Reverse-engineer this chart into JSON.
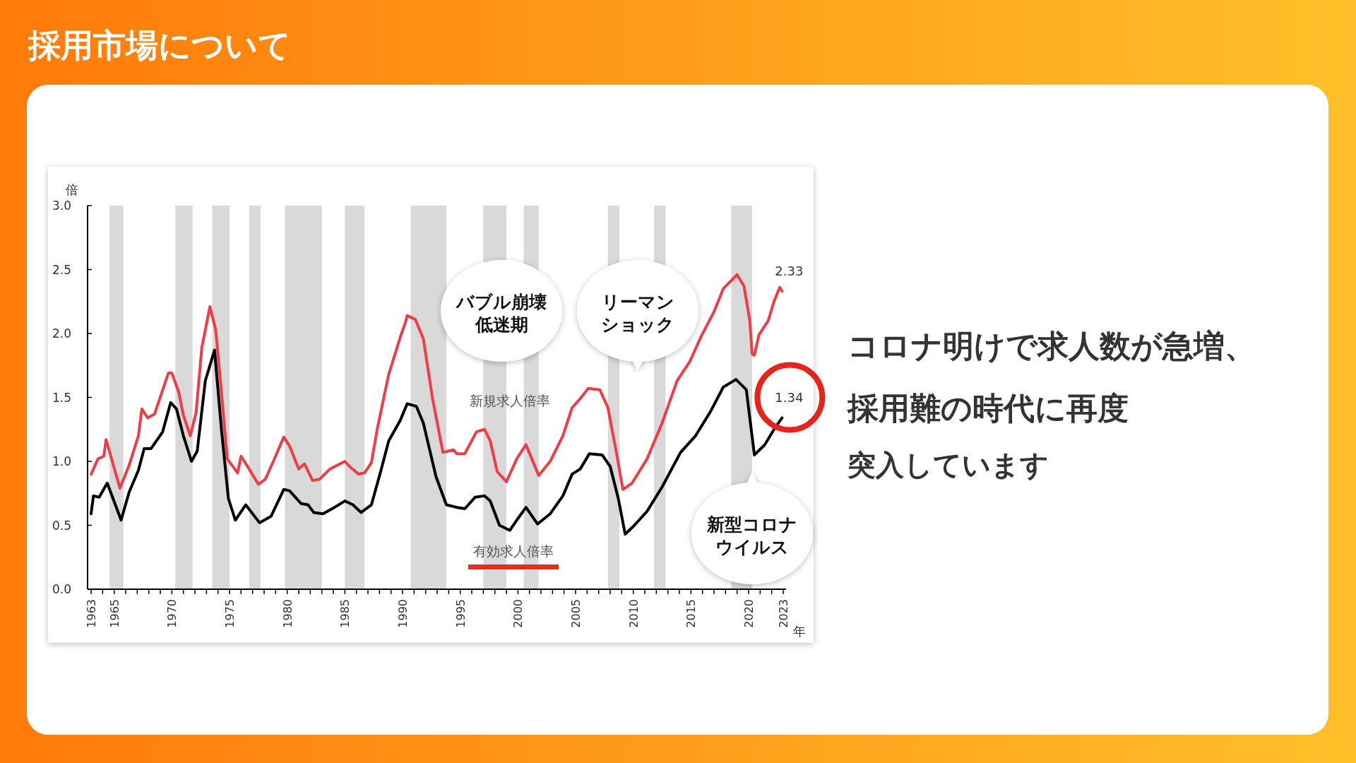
{
  "chart_data": {
    "type": "line",
    "title": "採用市場について",
    "ylabel": "倍",
    "xlabel": "年",
    "xlim": [
      1963,
      2023
    ],
    "xticks": [
      {
        "value": 1963,
        "label": "1963"
      },
      {
        "value": 1964,
        "label": null
      },
      {
        "value": 1965,
        "label": "1965"
      },
      {
        "value": 1966,
        "label": null
      },
      {
        "value": 1967,
        "label": null
      },
      {
        "value": 1968,
        "label": null
      },
      {
        "value": 1969,
        "label": null
      },
      {
        "value": 1970,
        "label": "1970"
      },
      {
        "value": 1971,
        "label": null
      },
      {
        "value": 1972,
        "label": null
      },
      {
        "value": 1973,
        "label": null
      },
      {
        "value": 1974,
        "label": null
      },
      {
        "value": 1975,
        "label": "1975"
      },
      {
        "value": 1976,
        "label": null
      },
      {
        "value": 1977,
        "label": null
      },
      {
        "value": 1978,
        "label": null
      },
      {
        "value": 1979,
        "label": null
      },
      {
        "value": 1980,
        "label": "1980"
      },
      {
        "value": 1981,
        "label": null
      },
      {
        "value": 1982,
        "label": null
      },
      {
        "value": 1983,
        "label": null
      },
      {
        "value": 1984,
        "label": null
      },
      {
        "value": 1985,
        "label": "1985"
      },
      {
        "value": 1986,
        "label": null
      },
      {
        "value": 1987,
        "label": null
      },
      {
        "value": 1988,
        "label": null
      },
      {
        "value": 1989,
        "label": null
      },
      {
        "value": 1990,
        "label": "1990"
      },
      {
        "value": 1991,
        "label": null
      },
      {
        "value": 1992,
        "label": null
      },
      {
        "value": 1993,
        "label": null
      },
      {
        "value": 1994,
        "label": null
      },
      {
        "value": 1995,
        "label": "1995"
      },
      {
        "value": 1996,
        "label": null
      },
      {
        "value": 1997,
        "label": null
      },
      {
        "value": 1998,
        "label": null
      },
      {
        "value": 1999,
        "label": null
      },
      {
        "value": 2000,
        "label": "2000"
      },
      {
        "value": 2001,
        "label": null
      },
      {
        "value": 2002,
        "label": null
      },
      {
        "value": 2003,
        "label": null
      },
      {
        "value": 2004,
        "label": null
      },
      {
        "value": 2005,
        "label": "2005"
      },
      {
        "value": 2006,
        "label": null
      },
      {
        "value": 2007,
        "label": null
      },
      {
        "value": 2008,
        "label": null
      },
      {
        "value": 2009,
        "label": null
      },
      {
        "value": 2010,
        "label": "2010"
      },
      {
        "value": 2011,
        "label": null
      },
      {
        "value": 2012,
        "label": null
      },
      {
        "value": 2013,
        "label": null
      },
      {
        "value": 2014,
        "label": null
      },
      {
        "value": 2015,
        "label": "2015"
      },
      {
        "value": 2016,
        "label": null
      },
      {
        "value": 2017,
        "label": null
      },
      {
        "value": 2018,
        "label": null
      },
      {
        "value": 2019,
        "label": null
      },
      {
        "value": 2020,
        "label": "2020"
      },
      {
        "value": 2021,
        "label": null
      },
      {
        "value": 2022,
        "label": null
      },
      {
        "value": 2023,
        "label": "2023"
      }
    ],
    "ylim": [
      0,
      3
    ],
    "yticks": [
      {
        "value": 0,
        "label": "0.0"
      },
      {
        "value": 0.5,
        "label": "0.5"
      },
      {
        "value": 1,
        "label": "1.0"
      },
      {
        "value": 1.5,
        "label": "1.5"
      },
      {
        "value": 2,
        "label": "2.0"
      },
      {
        "value": 2.5,
        "label": "2.5"
      },
      {
        "value": 3,
        "label": "3.0"
      }
    ],
    "grid": false,
    "legend": false,
    "marker": "none",
    "line_style": "solid",
    "series": [
      {
        "name": "新規求人倍率",
        "color": "#f03c46",
        "x": [
          1963.0,
          1963.6,
          1964.1,
          1964.3,
          1965.5,
          1966.3,
          1967.1,
          1967.4,
          1967.9,
          1968.5,
          1969.7,
          1970.0,
          1970.6,
          1971.0,
          1971.6,
          1972.1,
          1972.6,
          1973.3,
          1973.8,
          1974.3,
          1974.8,
          1975.2,
          1975.7,
          1976.0,
          1976.7,
          1977.5,
          1978.1,
          1978.8,
          1979.7,
          1980.2,
          1981.0,
          1981.5,
          1982.2,
          1982.8,
          1983.7,
          1985.0,
          1985.4,
          1986.2,
          1986.7,
          1987.3,
          1987.8,
          1988.8,
          1989.8,
          1990.3,
          1990.4,
          1991.1,
          1991.8,
          1992.6,
          1993.5,
          1994.4,
          1994.7,
          1995.4,
          1996.4,
          1997.1,
          1997.6,
          1998.2,
          1999.0,
          1999.9,
          2000.7,
          2001.2,
          2001.8,
          2002.8,
          2003.9,
          2004.7,
          2005.4,
          2006.1,
          2007.1,
          2007.8,
          2008.6,
          2009.1,
          2009.9,
          2011.2,
          2012.5,
          2013.8,
          2014.9,
          2015.9,
          2017.0,
          2017.8,
          2019.0,
          2019.6,
          2020.1,
          2020.3,
          2020.5,
          2020.9,
          2021.7,
          2022.2,
          2022.7,
          2022.9
        ],
        "values": [
          0.9,
          1.02,
          1.04,
          1.17,
          0.79,
          0.97,
          1.2,
          1.41,
          1.34,
          1.37,
          1.69,
          1.69,
          1.54,
          1.36,
          1.2,
          1.38,
          1.89,
          2.21,
          2.03,
          1.54,
          1.02,
          0.97,
          0.91,
          1.04,
          0.94,
          0.82,
          0.86,
          1.0,
          1.19,
          1.12,
          0.94,
          0.98,
          0.85,
          0.86,
          0.94,
          1.0,
          0.96,
          0.9,
          0.91,
          0.99,
          1.25,
          1.68,
          1.97,
          2.1,
          2.14,
          2.11,
          1.96,
          1.49,
          1.07,
          1.09,
          1.06,
          1.06,
          1.23,
          1.25,
          1.16,
          0.92,
          0.84,
          1.02,
          1.13,
          1.02,
          0.89,
          1.0,
          1.2,
          1.42,
          1.49,
          1.57,
          1.56,
          1.42,
          1.04,
          0.78,
          0.83,
          1.02,
          1.3,
          1.63,
          1.78,
          1.98,
          2.17,
          2.35,
          2.46,
          2.37,
          2.1,
          1.84,
          1.83,
          1.99,
          2.1,
          2.25,
          2.36,
          2.33
        ]
      },
      {
        "name": "有効求人倍率",
        "color": "#000000",
        "x": [
          1963.0,
          1963.2,
          1963.7,
          1964.4,
          1965.6,
          1966.3,
          1967.1,
          1967.6,
          1968.2,
          1969.2,
          1969.9,
          1970.4,
          1971.0,
          1971.7,
          1972.2,
          1972.9,
          1973.7,
          1974.3,
          1974.9,
          1975.5,
          1976.4,
          1977.6,
          1978.6,
          1979.7,
          1980.2,
          1981.2,
          1981.8,
          1982.3,
          1983.1,
          1984.1,
          1985.0,
          1985.7,
          1986.4,
          1987.3,
          1988.1,
          1988.8,
          1989.8,
          1990.4,
          1991.2,
          1991.8,
          1992.9,
          1993.8,
          1994.7,
          1995.4,
          1996.3,
          1997.1,
          1997.6,
          1998.4,
          1999.3,
          1999.9,
          2000.7,
          2001.7,
          2002.8,
          2003.9,
          2004.7,
          2005.4,
          2006.2,
          2007.3,
          2008.0,
          2008.7,
          2009.3,
          2010.1,
          2011.2,
          2012.5,
          2014.1,
          2015.4,
          2016.7,
          2017.8,
          2018.9,
          2019.8,
          2020.5,
          2021.4,
          2022.2,
          2022.9
        ],
        "values": [
          0.59,
          0.73,
          0.72,
          0.83,
          0.54,
          0.76,
          0.93,
          1.1,
          1.1,
          1.23,
          1.46,
          1.41,
          1.2,
          1.0,
          1.08,
          1.63,
          1.87,
          1.25,
          0.71,
          0.54,
          0.66,
          0.52,
          0.57,
          0.78,
          0.77,
          0.67,
          0.66,
          0.6,
          0.59,
          0.64,
          0.69,
          0.66,
          0.6,
          0.66,
          0.92,
          1.16,
          1.32,
          1.45,
          1.43,
          1.3,
          0.88,
          0.66,
          0.64,
          0.63,
          0.72,
          0.73,
          0.69,
          0.5,
          0.46,
          0.54,
          0.64,
          0.51,
          0.59,
          0.73,
          0.9,
          0.94,
          1.06,
          1.05,
          0.96,
          0.71,
          0.43,
          0.5,
          0.61,
          0.8,
          1.07,
          1.2,
          1.39,
          1.58,
          1.64,
          1.56,
          1.05,
          1.13,
          1.25,
          1.34
        ]
      }
    ],
    "bands": [
      {
        "axis": "x",
        "from": 1964.6,
        "to": 1965.8,
        "color": "#d9d9d9"
      },
      {
        "axis": "x",
        "from": 1970.3,
        "to": 1971.8,
        "color": "#d9d9d9"
      },
      {
        "axis": "x",
        "from": 1973.5,
        "to": 1975.0,
        "color": "#d9d9d9"
      },
      {
        "axis": "x",
        "from": 1976.7,
        "to": 1977.7,
        "color": "#d9d9d9"
      },
      {
        "axis": "x",
        "from": 1979.8,
        "to": 1983.0,
        "color": "#d9d9d9"
      },
      {
        "axis": "x",
        "from": 1985.0,
        "to": 1986.7,
        "color": "#d9d9d9"
      },
      {
        "axis": "x",
        "from": 1990.7,
        "to": 1993.8,
        "color": "#d9d9d9"
      },
      {
        "axis": "x",
        "from": 1997.0,
        "to": 1999.0,
        "color": "#d9d9d9"
      },
      {
        "axis": "x",
        "from": 2000.5,
        "to": 2001.8,
        "color": "#d9d9d9"
      },
      {
        "axis": "x",
        "from": 2007.8,
        "to": 2008.8,
        "color": "#d9d9d9"
      },
      {
        "axis": "x",
        "from": 2011.8,
        "to": 2012.8,
        "color": "#d9d9d9"
      },
      {
        "axis": "x",
        "from": 2018.5,
        "to": 2020.3,
        "color": "#d9d9d9"
      }
    ],
    "annotations": [
      "バブル崩壊",
      "低迷期",
      "リーマン",
      "ショック",
      "新型コロナ",
      "ウイルス",
      {
        "text": "2.33",
        "x": 2022.9,
        "y": 2.33
      },
      {
        "text": "1.34",
        "x": 2022.9,
        "y": 1.34
      },
      "コロナ明けで求人数が急増、",
      "採用難の時代に再度",
      "突入しています"
    ]
  }
}
